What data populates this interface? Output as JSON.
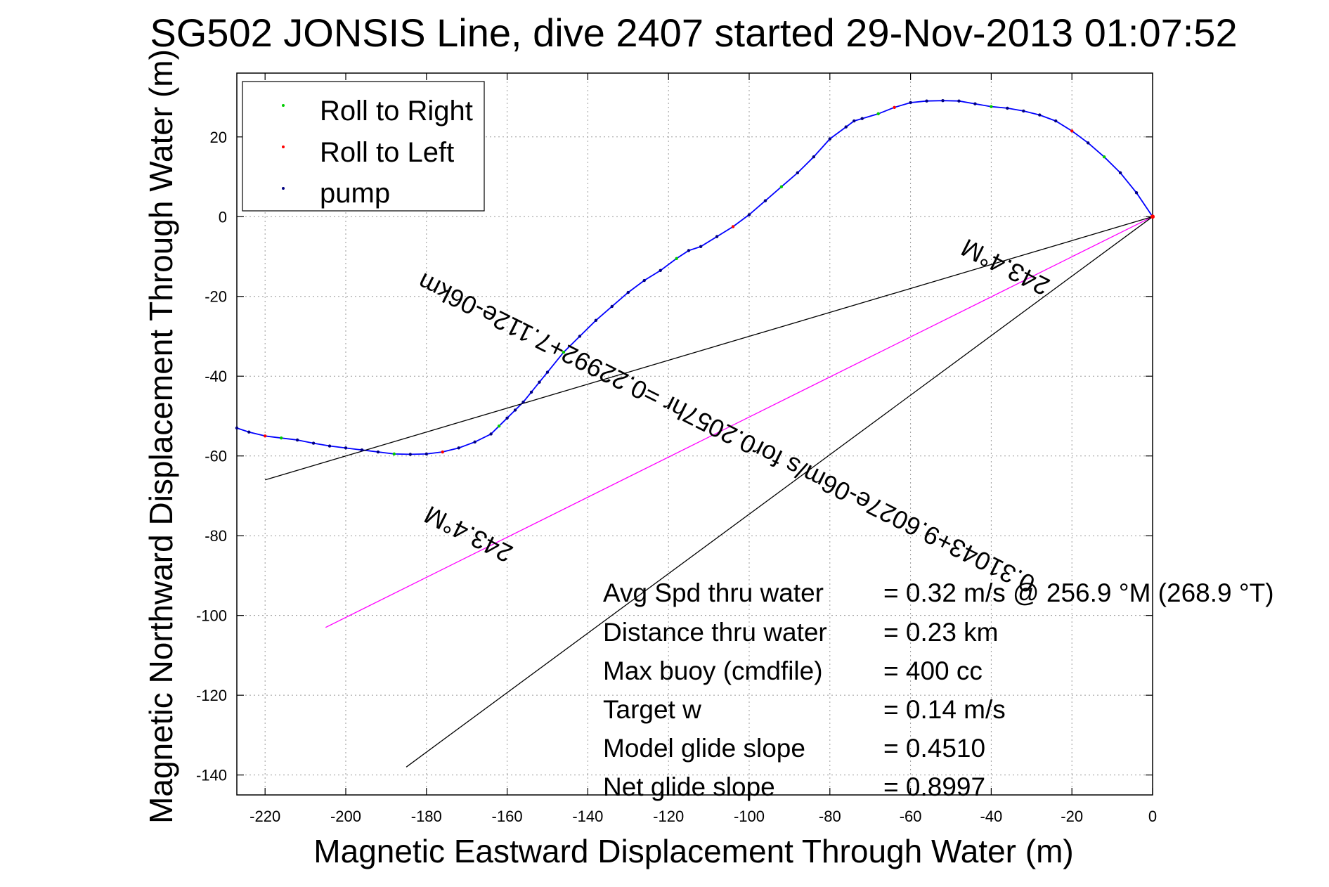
{
  "chart_data": {
    "type": "line",
    "title": "SG502 JONSIS Line, dive 2407 started 29-Nov-2013 01:07:52",
    "xlabel": "Magnetic Eastward Displacement Through Water (m)",
    "ylabel": "Magnetic Northward Displacement Through Water (m)",
    "xlim": [
      -227,
      0
    ],
    "ylim": [
      -145,
      36
    ],
    "xticks": [
      -220,
      -200,
      -180,
      -160,
      -140,
      -120,
      -100,
      -80,
      -60,
      -40,
      -20,
      0
    ],
    "yticks": [
      20,
      0,
      -20,
      -40,
      -60,
      -80,
      -100,
      -120,
      -140
    ],
    "grid": true,
    "legend_position": "top-left",
    "legend": [
      "Roll to Right",
      "Roll to Left",
      "pump"
    ],
    "colors": {
      "track": "#0000ff",
      "roll_right": "#00cc00",
      "roll_left": "#ff0000",
      "pump": "#000080",
      "bearing_line": "#ff00ff",
      "reference_lines": "#000000"
    },
    "series": [
      {
        "name": "track",
        "x": [
          0,
          -4,
          -8,
          -12,
          -16,
          -20,
          -24,
          -28,
          -32,
          -36,
          -40,
          -44,
          -48,
          -52,
          -56,
          -60,
          -64,
          -68,
          -72,
          -74,
          -76,
          -80,
          -84,
          -88,
          -92,
          -96,
          -100,
          -104,
          -108,
          -112,
          -115,
          -118,
          -122,
          -126,
          -130,
          -134,
          -138,
          -142,
          -146,
          -150,
          -152,
          -154,
          -156,
          -158,
          -160,
          -162,
          -164,
          -168,
          -172,
          -176,
          -180,
          -184,
          -188,
          -192,
          -196,
          -200,
          -204,
          -208,
          -212,
          -216,
          -220,
          -224,
          -227
        ],
        "y": [
          0,
          6,
          11,
          15,
          18.5,
          21.5,
          24,
          25.5,
          26.5,
          27.2,
          27.6,
          28.3,
          29,
          29.1,
          29,
          28.6,
          27.4,
          25.8,
          24.6,
          24,
          22.5,
          19.5,
          15,
          11,
          7.5,
          4,
          0.5,
          -2.5,
          -5,
          -7.5,
          -8.5,
          -10.5,
          -13.5,
          -16,
          -19,
          -22.5,
          -26,
          -30,
          -34,
          -39,
          -41.5,
          -44,
          -46.5,
          -48.5,
          -50.5,
          -52.5,
          -54.5,
          -56.5,
          -58,
          -59,
          -59.5,
          -59.6,
          -59.5,
          -59,
          -58.5,
          -58,
          -57.5,
          -56.8,
          -56,
          -55.5,
          -55,
          -54,
          -53
        ]
      },
      {
        "name": "bearing-line",
        "x": [
          0,
          -205
        ],
        "y": [
          0,
          -103
        ]
      },
      {
        "name": "reference-line-1",
        "x": [
          0,
          -220
        ],
        "y": [
          0,
          -66
        ]
      },
      {
        "name": "reference-line-2",
        "x": [
          0,
          -185
        ],
        "y": [
          0,
          -138
        ]
      }
    ],
    "rotated_labels": [
      "0.31043+9.6027e-06m/s for0.2057hr =0.22992+7.112e-06km",
      "243.4°M",
      "243.4°M"
    ],
    "annotations": [
      {
        "label": "Avg Spd thru water",
        "value": "=  0.32 m/s @ 256.9 °M (268.9 °T)"
      },
      {
        "label": "Distance thru water",
        "value": "=  0.23 km"
      },
      {
        "label": "Max buoy (cmdfile)",
        "value": "= 400 cc"
      },
      {
        "label": "Target w",
        "value": "= 0.14 m/s"
      },
      {
        "label": "Model glide slope",
        "value": "= 0.4510"
      },
      {
        "label": "Net glide slope",
        "value": "= 0.8997"
      }
    ]
  }
}
